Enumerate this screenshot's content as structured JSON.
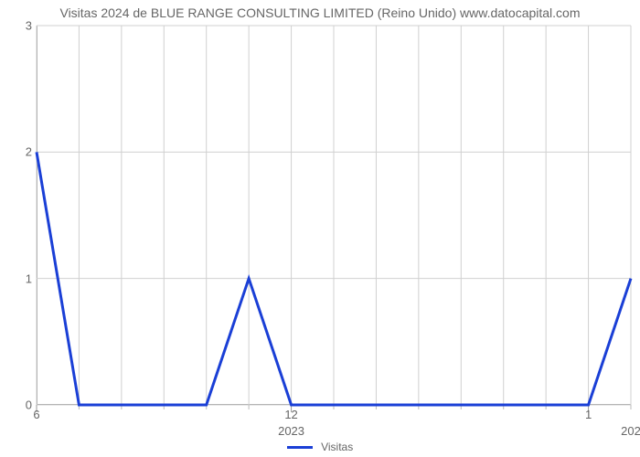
{
  "chart": {
    "type": "line",
    "title": "Visitas 2024 de BLUE RANGE CONSULTING LIMITED (Reino Unido) www.datocapital.com",
    "title_fontsize": 14,
    "title_color": "#666666",
    "background_color": "#ffffff",
    "plot_border_color": "#999999",
    "grid_color": "#d0d0d0",
    "grid_minor_color": "#e8e8e8",
    "line_color": "#1a3fd6",
    "line_width": 3,
    "ylim": [
      0,
      3
    ],
    "ytick_step": 1,
    "y_ticks": [
      0,
      1,
      2,
      3
    ],
    "x_major_labels": [
      "6",
      "12",
      "1"
    ],
    "x_sub_labels": [
      {
        "label": "2023",
        "at_index": 6
      },
      {
        "label": "202",
        "at_index": 14
      }
    ],
    "data_points": [
      {
        "i": 0,
        "value": 2
      },
      {
        "i": 1,
        "value": 0
      },
      {
        "i": 2,
        "value": 0
      },
      {
        "i": 3,
        "value": 0
      },
      {
        "i": 4,
        "value": 0
      },
      {
        "i": 5,
        "value": 1
      },
      {
        "i": 6,
        "value": 0
      },
      {
        "i": 7,
        "value": 0
      },
      {
        "i": 8,
        "value": 0
      },
      {
        "i": 9,
        "value": 0
      },
      {
        "i": 10,
        "value": 0
      },
      {
        "i": 11,
        "value": 0
      },
      {
        "i": 12,
        "value": 0
      },
      {
        "i": 13,
        "value": 0
      },
      {
        "i": 14,
        "value": 1
      }
    ],
    "x_major_tick_indices": [
      0,
      6,
      13
    ],
    "x_minor_tick_interval": 1,
    "legend": {
      "label": "Visitas",
      "swatch_color": "#1a3fd6"
    }
  }
}
